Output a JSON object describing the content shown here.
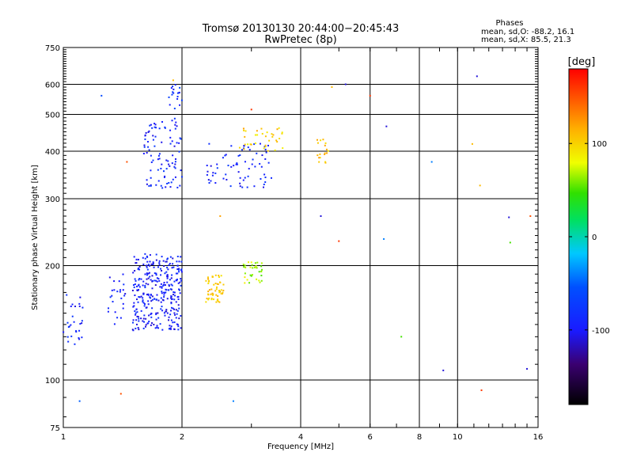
{
  "header": {
    "title_line1": "Tromsø 20130130 20:44:00−20:45:43",
    "title_line2": "RwPretec (8p)"
  },
  "phases": {
    "title": "Phases",
    "line1": "mean, sd,O: -88.2, 16.1",
    "line2": "mean, sd,X:  85.5, 21.3"
  },
  "colorbar": {
    "label": "[deg]",
    "ticks": [
      {
        "value": 100,
        "label": "100"
      },
      {
        "value": 0,
        "label": "0"
      },
      {
        "value": -100,
        "label": "-100"
      }
    ],
    "range": [
      -180,
      180
    ]
  },
  "chart_data": {
    "type": "scatter",
    "title": "Tromsø 20130130 20:44:00−20:45:43",
    "subtitle": "RwPretec (8p)",
    "xlabel": "Frequency [MHz]",
    "ylabel": "Stationary phase Virtual Height [km]",
    "xscale": "log",
    "yscale": "log",
    "xlim": [
      1,
      16
    ],
    "ylim": [
      75,
      750
    ],
    "x_ticks": [
      {
        "value": 1,
        "label": "1"
      },
      {
        "value": 2,
        "label": "2"
      },
      {
        "value": 4,
        "label": "4"
      },
      {
        "value": 6,
        "label": "6"
      },
      {
        "value": 8,
        "label": "8"
      },
      {
        "value": 10,
        "label": "10"
      },
      {
        "value": 16,
        "label": "16"
      }
    ],
    "x_grid": [
      2,
      4,
      6,
      8,
      10
    ],
    "y_ticks": [
      {
        "value": 75,
        "label": "75"
      },
      {
        "value": 100,
        "label": "100"
      },
      {
        "value": 200,
        "label": "200"
      },
      {
        "value": 300,
        "label": "300"
      },
      {
        "value": 400,
        "label": "400"
      },
      {
        "value": 500,
        "label": "500"
      },
      {
        "value": 600,
        "label": "600"
      },
      {
        "value": 750,
        "label": "750"
      }
    ],
    "y_grid": [
      100,
      200,
      300,
      400,
      500,
      600
    ],
    "color_value": "phase [deg]",
    "clusters": [
      {
        "x_range": [
          1.0,
          1.12
        ],
        "y_range": [
          120,
          175
        ],
        "phase_range": [
          -110,
          -70
        ],
        "count": 28
      },
      {
        "x_range": [
          1.3,
          1.45
        ],
        "y_range": [
          140,
          190
        ],
        "phase_range": [
          -110,
          -80
        ],
        "count": 25
      },
      {
        "x_range": [
          1.5,
          2.0
        ],
        "y_range": [
          135,
          215
        ],
        "phase_range": [
          -115,
          -75
        ],
        "count": 320
      },
      {
        "x_range": [
          1.6,
          2.0
        ],
        "y_range": [
          320,
          480
        ],
        "phase_range": [
          -110,
          -70
        ],
        "count": 90
      },
      {
        "x_range": [
          1.85,
          2.0
        ],
        "y_range": [
          480,
          600
        ],
        "phase_range": [
          -110,
          -60
        ],
        "count": 20
      },
      {
        "x_range": [
          2.3,
          2.55
        ],
        "y_range": [
          160,
          190
        ],
        "phase_range": [
          90,
          120
        ],
        "count": 55
      },
      {
        "x_range": [
          2.85,
          3.2
        ],
        "y_range": [
          180,
          205
        ],
        "phase_range": [
          50,
          90
        ],
        "count": 35
      },
      {
        "x_range": [
          2.3,
          3.4
        ],
        "y_range": [
          320,
          420
        ],
        "phase_range": [
          -110,
          -70
        ],
        "count": 70
      },
      {
        "x_range": [
          2.8,
          3.7
        ],
        "y_range": [
          400,
          470
        ],
        "phase_range": [
          80,
          120
        ],
        "count": 35
      },
      {
        "x_range": [
          4.4,
          4.7
        ],
        "y_range": [
          370,
          430
        ],
        "phase_range": [
          90,
          125
        ],
        "count": 18
      }
    ],
    "sparse_points": [
      {
        "x": 1.1,
        "y": 88,
        "phase": -50
      },
      {
        "x": 1.4,
        "y": 92,
        "phase": 150
      },
      {
        "x": 1.25,
        "y": 560,
        "phase": -60
      },
      {
        "x": 1.45,
        "y": 375,
        "phase": 150
      },
      {
        "x": 1.9,
        "y": 615,
        "phase": 110
      },
      {
        "x": 2.5,
        "y": 270,
        "phase": 120
      },
      {
        "x": 2.7,
        "y": 88,
        "phase": -40
      },
      {
        "x": 3.0,
        "y": 515,
        "phase": 160
      },
      {
        "x": 4.5,
        "y": 270,
        "phase": -110
      },
      {
        "x": 4.8,
        "y": 590,
        "phase": 110
      },
      {
        "x": 5.2,
        "y": 600,
        "phase": -110
      },
      {
        "x": 5.0,
        "y": 232,
        "phase": 160
      },
      {
        "x": 6.0,
        "y": 560,
        "phase": 160
      },
      {
        "x": 6.5,
        "y": 235,
        "phase": -40
      },
      {
        "x": 6.6,
        "y": 465,
        "phase": -110
      },
      {
        "x": 7.2,
        "y": 130,
        "phase": 50
      },
      {
        "x": 8.6,
        "y": 375,
        "phase": -40
      },
      {
        "x": 9.2,
        "y": 106,
        "phase": -110
      },
      {
        "x": 11.2,
        "y": 630,
        "phase": -110
      },
      {
        "x": 10.9,
        "y": 418,
        "phase": 110
      },
      {
        "x": 11.4,
        "y": 325,
        "phase": 110
      },
      {
        "x": 11.5,
        "y": 94,
        "phase": 160
      },
      {
        "x": 13.5,
        "y": 268,
        "phase": -110
      },
      {
        "x": 13.6,
        "y": 230,
        "phase": 50
      },
      {
        "x": 15.3,
        "y": 270,
        "phase": 150
      },
      {
        "x": 15.0,
        "y": 107,
        "phase": -110
      }
    ]
  }
}
